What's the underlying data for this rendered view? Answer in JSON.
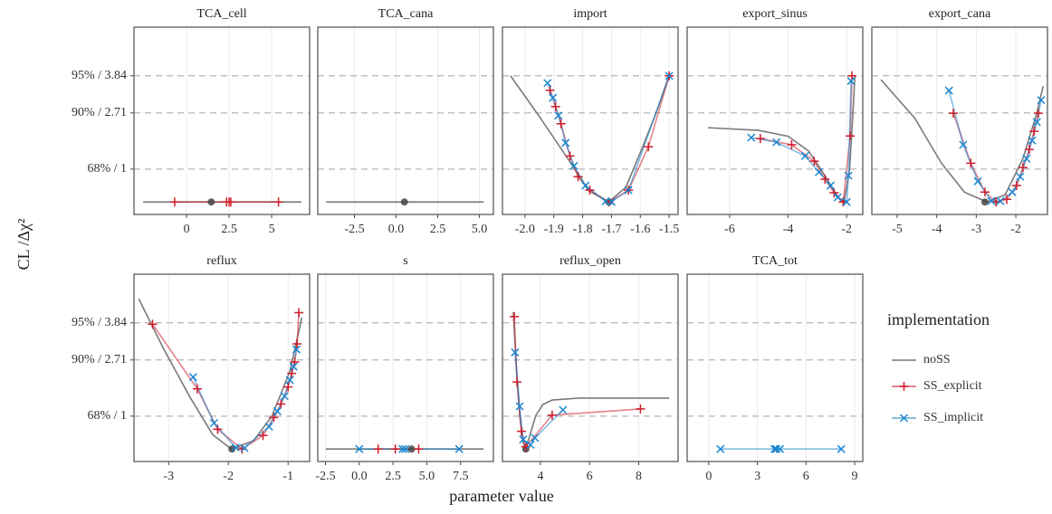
{
  "y_label": "CL /Δχ²",
  "x_label": "parameter value",
  "legend_title": "implementation",
  "ylim": [
    -0.38,
    5.32
  ],
  "yticks": [
    {
      "value": 1,
      "label": "68% / 1"
    },
    {
      "value": 2.71,
      "label": "90% / 2.71"
    },
    {
      "value": 3.84,
      "label": "95% / 3.84"
    }
  ],
  "chart_data": [
    {
      "type": "line",
      "title": "TCA_cell",
      "xlim": [
        -3.09,
        7.23
      ],
      "xticks": [
        0,
        2.5,
        5
      ],
      "best_fit": {
        "x": 1.45,
        "y": 0
      },
      "series": [
        {
          "name": "noSS",
          "color": "#7a7a7a",
          "marker": "none",
          "x": [
            -2.55,
            6.75
          ],
          "values": [
            0,
            0
          ]
        },
        {
          "name": "SS_explicit",
          "color": "#d01c2a",
          "marker": "plus",
          "x": [
            -0.7,
            2.35,
            2.5,
            2.6,
            5.4
          ],
          "values": [
            0,
            0,
            0,
            0,
            0
          ]
        }
      ]
    },
    {
      "type": "line",
      "title": "TCA_cana",
      "xlim": [
        -4.7,
        5.84
      ],
      "xticks": [
        -2.5,
        {
          "value": 0,
          "label": "0.0"
        },
        2.5,
        {
          "value": 5,
          "label": "5.0"
        }
      ],
      "best_fit": {
        "x": 0.5,
        "y": 0
      },
      "series": [
        {
          "name": "noSS",
          "color": "#7a7a7a",
          "marker": "none",
          "x": [
            -4.2,
            5.25
          ],
          "values": [
            0,
            0
          ]
        }
      ]
    },
    {
      "type": "line",
      "title": "import",
      "xlim": [
        -2.078,
        -1.469
      ],
      "xticks": [
        {
          "value": -2,
          "label": "-2.0"
        },
        -1.9,
        -1.8,
        -1.7,
        -1.6,
        -1.5
      ],
      "best_fit": {
        "x": -1.709,
        "y": 0
      },
      "series": [
        {
          "name": "noSS",
          "color": "#7a7a7a",
          "marker": "none",
          "x": [
            -2.05,
            -1.95,
            -1.85,
            -1.78,
            -1.71,
            -1.65,
            -1.6,
            -1.55,
            -1.5
          ],
          "values": [
            3.84,
            2.6,
            1.3,
            0.35,
            0,
            0.45,
            1.5,
            2.6,
            3.84
          ]
        },
        {
          "name": "SS_explicit",
          "color": "#d01c2a",
          "marker": "plus",
          "x": [
            -1.913,
            -1.894,
            -1.875,
            -1.844,
            -1.816,
            -1.775,
            -1.709,
            -1.641,
            -1.572,
            -1.5
          ],
          "values": [
            3.4,
            2.9,
            2.38,
            1.4,
            0.77,
            0.36,
            0,
            0.36,
            1.68,
            3.84
          ]
        },
        {
          "name": "SS_implicit",
          "color": "#1a86d0",
          "marker": "cross",
          "x": [
            -1.922,
            -1.903,
            -1.884,
            -1.859,
            -1.83,
            -1.79,
            -1.72,
            -1.7,
            -1.641,
            -1.5
          ],
          "values": [
            3.62,
            3.17,
            2.63,
            1.8,
            1.1,
            0.5,
            0.02,
            0,
            0.36,
            3.84
          ]
        }
      ]
    },
    {
      "type": "line",
      "title": "export_sinus",
      "xlim": [
        -7.45,
        -1.45
      ],
      "xticks": [
        -6,
        -4,
        -2
      ],
      "series": [
        {
          "name": "noSS",
          "color": "#7a7a7a",
          "marker": "none",
          "x": [
            -6.74,
            -5,
            -4,
            -3.3,
            -2.74,
            -2.3,
            -2.09,
            -1.9,
            -1.8,
            -1.72
          ],
          "values": [
            2.26,
            2.18,
            2.0,
            1.55,
            0.8,
            0.15,
            0,
            1.0,
            2.5,
            3.84
          ]
        },
        {
          "name": "SS_explicit",
          "color": "#d01c2a",
          "marker": "plus",
          "x": [
            -4.95,
            -3.88,
            -3.11,
            -2.74,
            -2.43,
            -2.12,
            -1.88,
            -1.82
          ],
          "values": [
            1.93,
            1.74,
            1.24,
            0.69,
            0.28,
            0,
            2.01,
            3.84
          ]
        },
        {
          "name": "SS_implicit",
          "color": "#1a86d0",
          "marker": "cross",
          "x": [
            -5.26,
            -4.4,
            -3.42,
            -2.95,
            -2.55,
            -2.31,
            -2.0,
            -1.94,
            -1.85
          ],
          "values": [
            1.96,
            1.82,
            1.4,
            0.91,
            0.5,
            0.14,
            0,
            0.8,
            3.68
          ]
        }
      ]
    },
    {
      "type": "line",
      "title": "export_cana",
      "xlim": [
        -5.64,
        -1.2
      ],
      "xticks": [
        -5,
        -4,
        -3,
        -2
      ],
      "best_fit": {
        "x": -2.78,
        "y": 0
      },
      "series": [
        {
          "name": "noSS",
          "color": "#7a7a7a",
          "marker": "none",
          "x": [
            -5.41,
            -4.56,
            -3.88,
            -3.3,
            -2.73,
            -2.27,
            -1.82,
            -1.47,
            -1.31
          ],
          "values": [
            3.72,
            2.56,
            1.18,
            0.3,
            0,
            0.22,
            1.32,
            2.7,
            3.52
          ]
        },
        {
          "name": "SS_explicit",
          "color": "#d01c2a",
          "marker": "plus",
          "x": [
            -3.58,
            -3.14,
            -2.78,
            -2.5,
            -2.23,
            -1.98,
            -1.82,
            -1.66,
            -1.54,
            -1.43
          ],
          "values": [
            2.7,
            1.18,
            0.3,
            0,
            0.08,
            0.5,
            1.05,
            1.6,
            2.15,
            2.7
          ]
        },
        {
          "name": "SS_implicit",
          "color": "#1a86d0",
          "marker": "cross",
          "x": [
            -3.69,
            -3.33,
            -2.96,
            -2.62,
            -2.39,
            -2.09,
            -1.89,
            -1.73,
            -1.59,
            -1.47,
            -1.36
          ],
          "values": [
            3.39,
            1.74,
            0.63,
            0.03,
            0.03,
            0.3,
            0.77,
            1.32,
            1.87,
            2.43,
            3.1
          ]
        }
      ]
    },
    {
      "type": "line",
      "title": "reflux",
      "xlim": [
        -3.58,
        -0.64
      ],
      "xticks": [
        -3,
        -2,
        -1
      ],
      "best_fit": {
        "x": -1.94,
        "y": 0
      },
      "series": [
        {
          "name": "noSS",
          "color": "#7a7a7a",
          "marker": "none",
          "x": [
            -3.5,
            -3.09,
            -2.64,
            -2.26,
            -1.95,
            -1.58,
            -1.27,
            -0.97,
            -0.77
          ],
          "values": [
            4.57,
            3.07,
            1.57,
            0.43,
            0,
            0.25,
            1.0,
            2.37,
            4.0
          ]
        },
        {
          "name": "SS_explicit",
          "color": "#d01c2a",
          "marker": "plus",
          "x": [
            -3.27,
            -2.52,
            -2.18,
            -1.77,
            -1.42,
            -1.24,
            -1.12,
            -1.0,
            -0.94,
            -0.89,
            -0.85,
            -0.82
          ],
          "values": [
            3.8,
            1.83,
            0.6,
            0,
            0.41,
            0.96,
            1.37,
            1.89,
            2.3,
            2.65,
            3.2,
            4.15
          ]
        },
        {
          "name": "SS_implicit",
          "color": "#1a86d0",
          "marker": "cross",
          "x": [
            -2.59,
            -2.24,
            -1.88,
            -1.73,
            -1.32,
            -1.18,
            -1.06,
            -0.97,
            -0.91,
            -0.86
          ],
          "values": [
            2.19,
            0.79,
            0.05,
            0.03,
            0.68,
            1.15,
            1.61,
            2.1,
            2.51,
            3.03
          ]
        }
      ]
    },
    {
      "type": "line",
      "title": "s",
      "xlim": [
        -3.07,
        9.93
      ],
      "xticks": [
        -2.5,
        {
          "value": 0,
          "label": "0.0"
        },
        2.5,
        {
          "value": 5,
          "label": "5.0"
        },
        7.5
      ],
      "best_fit": {
        "x": 3.87,
        "y": 0
      },
      "series": [
        {
          "name": "noSS",
          "color": "#7a7a7a",
          "marker": "none",
          "x": [
            -2.47,
            9.2
          ],
          "values": [
            0,
            0
          ]
        },
        {
          "name": "SS_explicit",
          "color": "#d01c2a",
          "marker": "plus",
          "x": [
            1.4,
            2.67,
            4.4
          ],
          "values": [
            0,
            0,
            0
          ]
        },
        {
          "name": "SS_implicit",
          "color": "#1a86d0",
          "marker": "cross",
          "x": [
            0,
            3.2,
            3.4,
            7.4
          ],
          "values": [
            0,
            0,
            0,
            0
          ]
        }
      ]
    },
    {
      "type": "line",
      "title": "reflux_open",
      "xlim": [
        2.46,
        9.6
      ],
      "xticks": [
        4,
        6,
        8
      ],
      "best_fit": {
        "x": 3.41,
        "y": 0
      },
      "series": [
        {
          "name": "noSS",
          "color": "#7a7a7a",
          "marker": "none",
          "x": [
            2.9,
            3.01,
            3.16,
            3.3,
            3.41,
            3.6,
            3.82,
            4.11,
            4.48,
            5.58,
            9.24
          ],
          "values": [
            4.17,
            2.67,
            1.03,
            0.2,
            0,
            0.48,
            1.03,
            1.36,
            1.49,
            1.55,
            1.55
          ]
        },
        {
          "name": "SS_explicit",
          "color": "#d01c2a",
          "marker": "plus",
          "x": [
            2.94,
            3.05,
            3.23,
            3.41,
            4.48,
            8.07
          ],
          "values": [
            4.03,
            2.04,
            0.54,
            0.07,
            1.03,
            1.22
          ]
        },
        {
          "name": "SS_implicit",
          "color": "#1a86d0",
          "marker": "cross",
          "x": [
            2.97,
            3.16,
            3.3,
            3.6,
            3.78,
            4.92
          ],
          "values": [
            2.94,
            1.3,
            0.29,
            0.13,
            0.34,
            1.19
          ]
        }
      ]
    },
    {
      "type": "line",
      "title": "TCA_tot",
      "xlim": [
        -1.33,
        9.5
      ],
      "xticks": [
        0,
        3,
        6,
        9
      ],
      "series": [
        {
          "name": "SS_implicit",
          "color": "#1a86d0",
          "marker": "cross",
          "x": [
            0.72,
            4.06,
            4.17,
            4.39,
            8.17
          ],
          "values": [
            0,
            0,
            0,
            0,
            0
          ]
        }
      ]
    }
  ]
}
